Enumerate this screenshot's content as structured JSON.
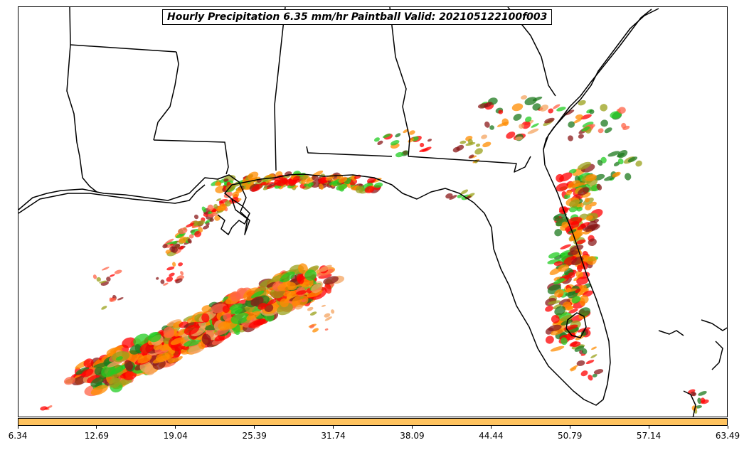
{
  "title": "Hourly Precipitation 6.35 mm/hr Paintball Valid: 202105122100f003",
  "colorbar": {
    "color": "#ffc35f",
    "ticks": [
      "6.34",
      "12.69",
      "19.04",
      "25.39",
      "31.74",
      "38.09",
      "44.44",
      "50.79",
      "57.14",
      "63.49"
    ]
  },
  "colors": {
    "member_colors": [
      "#ff0000",
      "#ff8c00",
      "#8b1a1a",
      "#9aa01a",
      "#22cc22",
      "#1e7a1e",
      "#ff6347",
      "#f4a460"
    ],
    "coastline": "#000000"
  }
}
